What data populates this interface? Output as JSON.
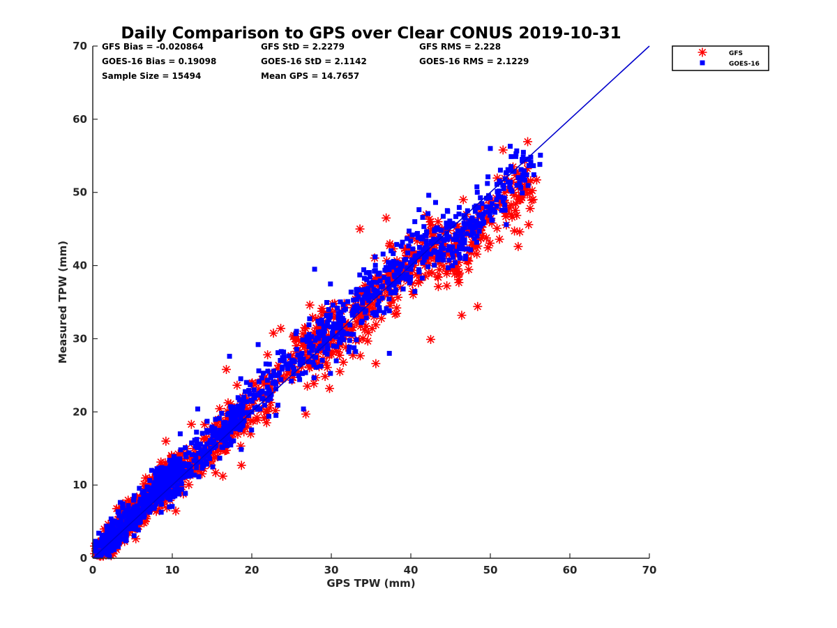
{
  "chart_data": {
    "type": "scatter",
    "title": "Daily Comparison to GPS over Clear CONUS 2019-10-31",
    "xlabel": "GPS TPW (mm)",
    "ylabel": "Measured TPW (mm)",
    "xlim": [
      0,
      70
    ],
    "ylim": [
      0,
      70
    ],
    "xticks": [
      "0",
      "10",
      "20",
      "30",
      "40",
      "50",
      "60",
      "70"
    ],
    "yticks": [
      "0",
      "10",
      "20",
      "30",
      "40",
      "50",
      "60",
      "70"
    ],
    "grid": false,
    "legend_position": "outside top-right",
    "stats": [
      [
        "GFS Bias = -0.020864",
        "GFS StD = 2.2279",
        "GFS RMS = 2.228"
      ],
      [
        "GOES-16 Bias = 0.19098",
        "GOES-16 StD = 2.1142",
        "GOES-16 RMS = 2.1229"
      ],
      [
        "Sample Size = 15494",
        "Mean GPS = 14.7657"
      ]
    ],
    "reference_line": {
      "name": "1:1 line",
      "x": [
        0,
        70
      ],
      "y": [
        0,
        70
      ],
      "color": "#0000cc"
    },
    "series": [
      {
        "name": "GFS",
        "marker": "asterisk",
        "color": "#ff0000",
        "clusters": [
          {
            "x": [
              0.5,
              11
            ],
            "y": [
              0.5,
              13
            ],
            "n": 520,
            "spread": 1.6
          },
          {
            "x": [
              8,
              19
            ],
            "y": [
              8,
              20
            ],
            "n": 200,
            "spread": 1.8
          },
          {
            "x": [
              15,
              30
            ],
            "y": [
              15,
              32
            ],
            "n": 170,
            "spread": 2.3
          },
          {
            "x": [
              27,
              44
            ],
            "y": [
              27,
              44
            ],
            "n": 300,
            "spread": 3.0
          },
          {
            "x": [
              44,
              55
            ],
            "y": [
              40,
              52
            ],
            "n": 160,
            "spread": 2.6
          }
        ],
        "points": [
          {
            "x": 16.8,
            "y": 25.8
          },
          {
            "x": 18.7,
            "y": 12.7
          },
          {
            "x": 26.8,
            "y": 19.7
          },
          {
            "x": 36.9,
            "y": 46.5
          },
          {
            "x": 53.5,
            "y": 42.6
          },
          {
            "x": 51.6,
            "y": 55.8
          },
          {
            "x": 48.4,
            "y": 34.4
          },
          {
            "x": 42.5,
            "y": 29.9
          },
          {
            "x": 27.3,
            "y": 34.6
          },
          {
            "x": 35.6,
            "y": 26.6
          },
          {
            "x": 53.7,
            "y": 44.6
          },
          {
            "x": 12.4,
            "y": 18.3
          },
          {
            "x": 46.4,
            "y": 33.2
          },
          {
            "x": 55,
            "y": 47.8
          },
          {
            "x": 33.6,
            "y": 45.0
          },
          {
            "x": 9.2,
            "y": 16.0
          }
        ]
      },
      {
        "name": "GOES-16",
        "marker": "square",
        "color": "#0000ff",
        "clusters": [
          {
            "x": [
              0.5,
              11
            ],
            "y": [
              0.8,
              12.5
            ],
            "n": 520,
            "spread": 1.5
          },
          {
            "x": [
              8,
              19
            ],
            "y": [
              8.5,
              20
            ],
            "n": 210,
            "spread": 1.7
          },
          {
            "x": [
              15,
              30
            ],
            "y": [
              16,
              32
            ],
            "n": 180,
            "spread": 2.2
          },
          {
            "x": [
              27,
              44
            ],
            "y": [
              28,
              45
            ],
            "n": 320,
            "spread": 2.8
          },
          {
            "x": [
              44,
              55
            ],
            "y": [
              42,
              54
            ],
            "n": 180,
            "spread": 2.5
          }
        ],
        "points": [
          {
            "x": 27.9,
            "y": 39.5
          },
          {
            "x": 17.2,
            "y": 27.6
          },
          {
            "x": 13.2,
            "y": 20.4
          },
          {
            "x": 52.5,
            "y": 56.3
          },
          {
            "x": 50.0,
            "y": 56.0
          },
          {
            "x": 37.3,
            "y": 28.0
          },
          {
            "x": 20.8,
            "y": 29.2
          },
          {
            "x": 26.5,
            "y": 20.4
          },
          {
            "x": 40.5,
            "y": 46.0
          },
          {
            "x": 54.0,
            "y": 54.5
          },
          {
            "x": 11.0,
            "y": 17.0
          }
        ]
      }
    ]
  }
}
